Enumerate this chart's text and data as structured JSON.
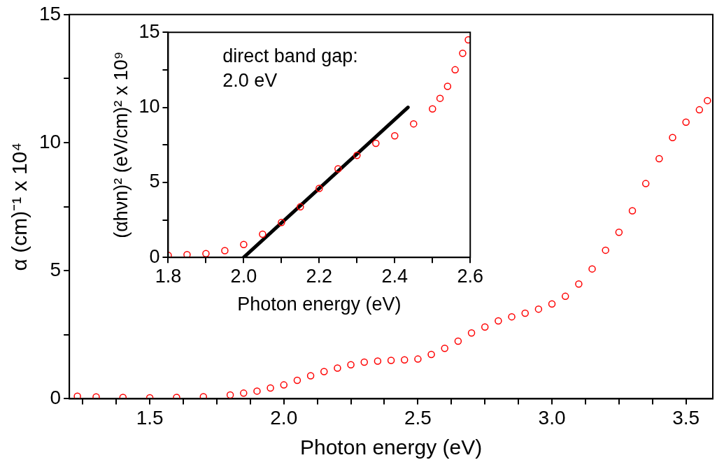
{
  "chart_data": [
    {
      "type": "scatter",
      "xlabel": "Photon energy (eV)",
      "ylabel": "α (cm)⁻¹ x 10⁴",
      "xlim": [
        1.2,
        3.6
      ],
      "ylim": [
        0,
        15
      ],
      "xticks": [
        {
          "value": 1.25,
          "label": null
        },
        {
          "value": 1.375,
          "label": null
        },
        1.5,
        {
          "value": 1.625,
          "label": null
        },
        {
          "value": 1.75,
          "label": null
        },
        {
          "value": 1.875,
          "label": null
        },
        {
          "value": 2,
          "label": "2.0"
        },
        {
          "value": 2.125,
          "label": null
        },
        {
          "value": 2.25,
          "label": null
        },
        {
          "value": 2.375,
          "label": null
        },
        2.5,
        {
          "value": 2.625,
          "label": null
        },
        {
          "value": 2.75,
          "label": null
        },
        {
          "value": 2.875,
          "label": null
        },
        {
          "value": 3,
          "label": "3.0"
        },
        {
          "value": 3.125,
          "label": null
        },
        {
          "value": 3.25,
          "label": null
        },
        {
          "value": 3.375,
          "label": null
        },
        3.5
      ],
      "yticks": [
        0,
        {
          "value": 2.5,
          "label": null
        },
        5,
        {
          "value": 7.5,
          "label": null
        },
        10,
        {
          "value": 12.5,
          "label": null
        },
        15
      ],
      "marker": "circle",
      "legend": false,
      "grid": false,
      "series": [
        {
          "color": "#ff0000",
          "x": [
            1.23,
            1.3,
            1.4,
            1.5,
            1.6,
            1.7,
            1.8,
            1.85,
            1.9,
            1.95,
            2.0,
            2.05,
            2.1,
            2.15,
            2.2,
            2.25,
            2.3,
            2.35,
            2.4,
            2.45,
            2.5,
            2.55,
            2.6,
            2.65,
            2.7,
            2.75,
            2.8,
            2.85,
            2.9,
            2.95,
            3.0,
            3.05,
            3.1,
            3.15,
            3.2,
            3.25,
            3.3,
            3.35,
            3.4,
            3.45,
            3.5,
            3.55,
            3.58
          ],
          "values": [
            0.1,
            0.07,
            0.05,
            0.04,
            0.05,
            0.08,
            0.15,
            0.22,
            0.3,
            0.42,
            0.54,
            0.72,
            0.9,
            1.06,
            1.2,
            1.33,
            1.43,
            1.47,
            1.5,
            1.52,
            1.55,
            1.73,
            1.97,
            2.25,
            2.57,
            2.8,
            3.04,
            3.2,
            3.34,
            3.5,
            3.7,
            4.0,
            4.48,
            5.07,
            5.8,
            6.5,
            7.34,
            8.4,
            9.37,
            10.2,
            10.8,
            11.28,
            11.64
          ]
        }
      ]
    },
    {
      "type": "scatter",
      "xlabel": "Photon energy (eV)",
      "ylabel": "(αhνn)² (eV/cm)² x 10⁹",
      "xlim": [
        1.8,
        2.6
      ],
      "ylim": [
        0,
        15
      ],
      "xticks": [
        1.8,
        {
          "value": 1.9,
          "label": null
        },
        {
          "value": 2,
          "label": "2.0"
        },
        {
          "value": 2.1,
          "label": null
        },
        2.2,
        {
          "value": 2.3,
          "label": null
        },
        2.4,
        {
          "value": 2.5,
          "label": null
        },
        2.6
      ],
      "yticks": [
        0,
        {
          "value": 2.5,
          "label": null
        },
        5,
        {
          "value": 7.5,
          "label": null
        },
        10,
        {
          "value": 12.5,
          "label": null
        },
        15
      ],
      "marker": "circle",
      "legend": false,
      "grid": false,
      "annotations": [
        "direct band gap:\n2.0 eV"
      ],
      "series": [
        {
          "color": "#ff0000",
          "x": [
            1.8,
            1.85,
            1.9,
            1.95,
            2.0,
            2.05,
            2.1,
            2.15,
            2.2,
            2.25,
            2.3,
            2.35,
            2.4,
            2.45,
            2.5,
            2.52,
            2.54,
            2.56,
            2.58,
            2.595
          ],
          "values": [
            0.14,
            0.18,
            0.25,
            0.45,
            0.86,
            1.55,
            2.33,
            3.37,
            4.6,
            5.9,
            6.8,
            7.6,
            8.1,
            8.9,
            9.9,
            10.6,
            11.4,
            12.5,
            13.6,
            14.5
          ]
        },
        {
          "type": "line",
          "color": "#000000",
          "marker": "none",
          "x": [
            2.0,
            2.435
          ],
          "values": [
            0,
            10
          ]
        }
      ]
    }
  ]
}
